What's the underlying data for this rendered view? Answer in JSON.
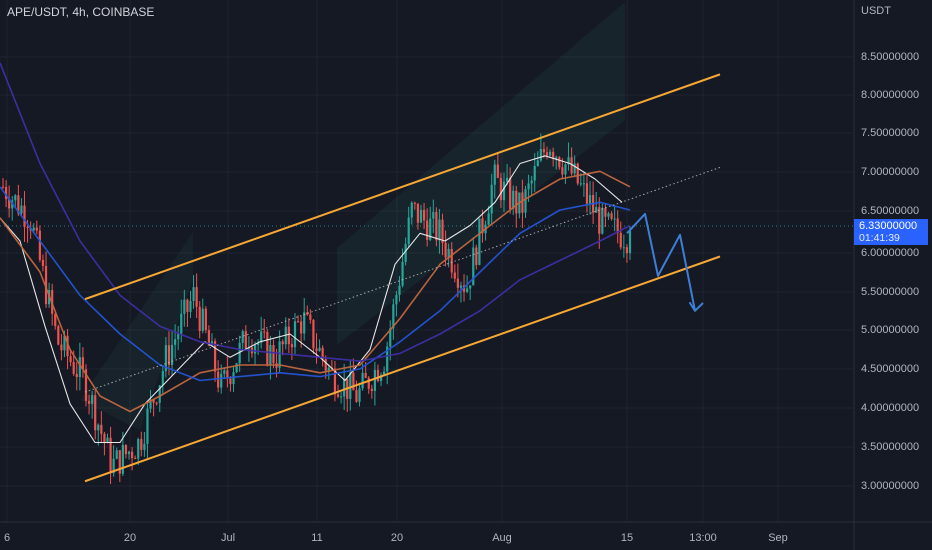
{
  "header": {
    "symbol": "APE/USDT, 4h, COINBASE"
  },
  "price_axis": {
    "unit": "USDT",
    "ticks": [
      "8.50000000",
      "8.00000000",
      "7.50000000",
      "7.00000000",
      "6.50000000",
      "6.00000000",
      "5.50000000",
      "5.00000000",
      "4.50000000",
      "4.00000000",
      "3.50000000",
      "3.00000000"
    ],
    "current_price": "6.33000000",
    "countdown": "01:41:39"
  },
  "time_axis": {
    "ticks": [
      "6",
      "20",
      "Jul",
      "11",
      "20",
      "Aug",
      "15",
      "13:00",
      "Sep"
    ]
  },
  "colors": {
    "background": "#151924",
    "grid": "#20242f",
    "up_candle": "#26a69a",
    "down_candle": "#ef5350",
    "channel": "#f7a735",
    "projection": "#3d7fd6",
    "price_tag": "#2962ff",
    "ma_fast": "#f0f0f0",
    "ma_mid": "#c2683f",
    "ma_slow": "#2456d6",
    "ma_long": "#3f2fa8"
  },
  "chart_data": {
    "type": "candlestick",
    "price_range": [
      2.8,
      8.9
    ],
    "key_prices": [
      6.9,
      6.5,
      4.9,
      4.4,
      3.3,
      3.6,
      4.7,
      5.5,
      4.3,
      5.0,
      4.7,
      5.2,
      4.5,
      4.2,
      4.7,
      6.6,
      6.3,
      5.6,
      7.0,
      6.6,
      7.5,
      7.0,
      6.4,
      6.25
    ],
    "close_price": 6.33,
    "moving_averages": [
      {
        "key": "ma_fast",
        "points": [
          [
            0,
            6.5
          ],
          [
            20,
            6.2
          ],
          [
            45,
            5.1
          ],
          [
            70,
            4.1
          ],
          [
            95,
            3.6
          ],
          [
            120,
            3.6
          ],
          [
            145,
            4.1
          ],
          [
            175,
            4.5
          ],
          [
            205,
            4.9
          ],
          [
            230,
            4.7
          ],
          [
            260,
            4.9
          ],
          [
            290,
            5.0
          ],
          [
            320,
            4.7
          ],
          [
            345,
            4.4
          ],
          [
            370,
            4.8
          ],
          [
            395,
            5.9
          ],
          [
            420,
            6.3
          ],
          [
            445,
            6.2
          ],
          [
            470,
            6.4
          ],
          [
            495,
            6.7
          ],
          [
            520,
            7.2
          ],
          [
            545,
            7.3
          ],
          [
            570,
            7.2
          ],
          [
            595,
            7.0
          ],
          [
            622,
            6.7
          ]
        ]
      },
      {
        "key": "ma_mid",
        "points": [
          [
            0,
            6.5
          ],
          [
            40,
            5.8
          ],
          [
            70,
            4.8
          ],
          [
            100,
            4.2
          ],
          [
            130,
            4.0
          ],
          [
            160,
            4.2
          ],
          [
            200,
            4.5
          ],
          [
            240,
            4.6
          ],
          [
            280,
            4.6
          ],
          [
            320,
            4.5
          ],
          [
            360,
            4.6
          ],
          [
            400,
            5.2
          ],
          [
            440,
            5.9
          ],
          [
            480,
            6.3
          ],
          [
            520,
            6.7
          ],
          [
            560,
            7.0
          ],
          [
            600,
            7.1
          ],
          [
            630,
            6.9
          ]
        ]
      },
      {
        "key": "ma_slow",
        "points": [
          [
            0,
            6.9
          ],
          [
            40,
            6.2
          ],
          [
            80,
            5.5
          ],
          [
            120,
            5.0
          ],
          [
            160,
            4.6
          ],
          [
            200,
            4.4
          ],
          [
            240,
            4.45
          ],
          [
            280,
            4.5
          ],
          [
            320,
            4.45
          ],
          [
            360,
            4.55
          ],
          [
            400,
            4.9
          ],
          [
            440,
            5.3
          ],
          [
            480,
            5.8
          ],
          [
            520,
            6.3
          ],
          [
            560,
            6.6
          ],
          [
            600,
            6.7
          ],
          [
            630,
            6.6
          ]
        ]
      },
      {
        "key": "ma_long",
        "points": [
          [
            0,
            8.5
          ],
          [
            40,
            7.2
          ],
          [
            80,
            6.2
          ],
          [
            120,
            5.5
          ],
          [
            160,
            5.1
          ],
          [
            200,
            4.9
          ],
          [
            240,
            4.8
          ],
          [
            280,
            4.75
          ],
          [
            320,
            4.7
          ],
          [
            360,
            4.65
          ],
          [
            400,
            4.75
          ],
          [
            440,
            5.0
          ],
          [
            480,
            5.3
          ],
          [
            520,
            5.7
          ],
          [
            560,
            5.95
          ],
          [
            600,
            6.2
          ],
          [
            630,
            6.4
          ]
        ]
      }
    ],
    "channel_upper": [
      [
        85,
        5.45
      ],
      [
        720,
        8.35
      ]
    ],
    "channel_lower": [
      [
        85,
        3.1
      ],
      [
        720,
        6.0
      ]
    ],
    "channel_mid": [
      [
        85,
        4.25
      ],
      [
        720,
        7.15
      ]
    ],
    "projection_path": [
      [
        627,
        6.3
      ],
      [
        645,
        6.55
      ],
      [
        658,
        5.75
      ],
      [
        680,
        6.28
      ],
      [
        695,
        5.3
      ],
      [
        690,
        5.4
      ],
      [
        695,
        5.3
      ],
      [
        703,
        5.4
      ]
    ]
  }
}
